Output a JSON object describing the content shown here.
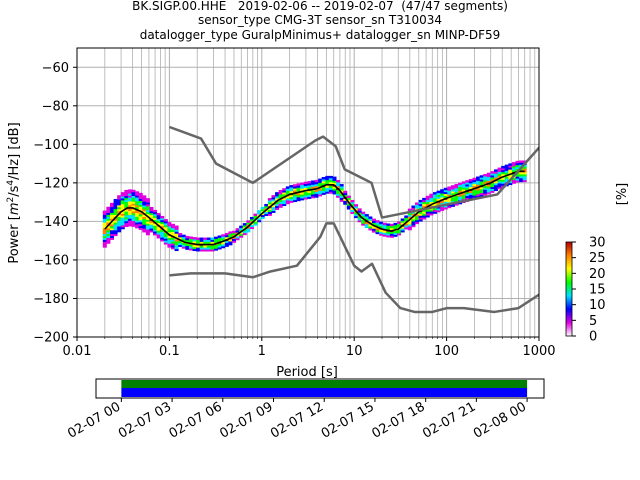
{
  "title_lines": [
    "BK.SIGP.00.HHE   2019-02-06 -- 2019-02-07  (47/47 segments)",
    "sensor_type CMG-3T sensor_sn T310034",
    "datalogger_type GuralpMinimus+ datalogger_sn MINP-DF59"
  ],
  "chart_data": [
    {
      "type": "heatmap",
      "subtype": "probabilistic-power-spectral-density",
      "xlabel": "Period [s]",
      "ylabel": "Power [m²/s⁴/Hz] [dB]",
      "ylabel_parts": {
        "pre": "Power [",
        "m": "m",
        "exp1": "2",
        "mid": "/s",
        "exp2": "4",
        "post": "/Hz] [dB]"
      },
      "xscale": "log",
      "xlim": [
        0.01,
        1000
      ],
      "ylim": [
        -200,
        -50
      ],
      "xticks": [
        0.01,
        0.1,
        1,
        10,
        100,
        1000
      ],
      "xtick_labels": [
        "0.01",
        "0.1",
        "1",
        "10",
        "100",
        "1000"
      ],
      "yticks": [
        -200,
        -180,
        -160,
        -140,
        -120,
        -100,
        -80,
        -60
      ],
      "ytick_labels": [
        "−200",
        "−180",
        "−160",
        "−140",
        "−120",
        "−100",
        "−80",
        "−60"
      ],
      "grid": true,
      "colorbar": {
        "label": "[%]",
        "range": [
          0,
          30
        ],
        "ticks": [
          0,
          5,
          10,
          15,
          20,
          25,
          30
        ],
        "tick_labels": [
          "0",
          "5",
          "10",
          "15",
          "20",
          "25",
          "30"
        ],
        "colors": [
          "#ffffff",
          "#e000e0",
          "#0000ff",
          "#00e0ff",
          "#00ff00",
          "#ffff00",
          "#ff8000",
          "#b00000"
        ]
      },
      "series": [
        {
          "role": "mode",
          "color": "#000000",
          "points": [
            [
              0.02,
              -144
            ],
            [
              0.025,
              -139
            ],
            [
              0.03,
              -135
            ],
            [
              0.035,
              -133
            ],
            [
              0.04,
              -133
            ],
            [
              0.05,
              -135
            ],
            [
              0.06,
              -138
            ],
            [
              0.08,
              -143
            ],
            [
              0.1,
              -147
            ],
            [
              0.15,
              -151
            ],
            [
              0.2,
              -152
            ],
            [
              0.3,
              -152
            ],
            [
              0.4,
              -150
            ],
            [
              0.5,
              -148
            ],
            [
              0.7,
              -143
            ],
            [
              1,
              -136
            ],
            [
              1.5,
              -129
            ],
            [
              2,
              -126
            ],
            [
              3,
              -124
            ],
            [
              4,
              -123
            ],
            [
              5,
              -121
            ],
            [
              6,
              -121
            ],
            [
              7,
              -124
            ],
            [
              9,
              -131
            ],
            [
              12,
              -138
            ],
            [
              16,
              -142
            ],
            [
              20,
              -144
            ],
            [
              25,
              -145
            ],
            [
              30,
              -144
            ],
            [
              40,
              -139
            ],
            [
              50,
              -135
            ],
            [
              70,
              -131
            ],
            [
              100,
              -128
            ],
            [
              150,
              -125
            ],
            [
              200,
              -123
            ],
            [
              300,
              -120
            ],
            [
              400,
              -117
            ],
            [
              600,
              -114
            ],
            [
              700,
              -114
            ]
          ]
        },
        {
          "role": "new-high-noise-model",
          "color": "#666666",
          "points": [
            [
              0.1,
              -91
            ],
            [
              0.22,
              -97
            ],
            [
              0.32,
              -110
            ],
            [
              0.8,
              -120
            ],
            [
              3.8,
              -98
            ],
            [
              4.6,
              -96
            ],
            [
              6.3,
              -101
            ],
            [
              7.9,
              -113
            ],
            [
              15.4,
              -120
            ],
            [
              20,
              -138
            ],
            [
              354,
              -126
            ],
            [
              10000,
              -48
            ]
          ]
        },
        {
          "role": "new-low-noise-model",
          "color": "#666666",
          "points": [
            [
              0.1,
              -168
            ],
            [
              0.17,
              -167
            ],
            [
              0.4,
              -167
            ],
            [
              0.8,
              -169
            ],
            [
              1.24,
              -166
            ],
            [
              2.4,
              -163
            ],
            [
              4.3,
              -148
            ],
            [
              5,
              -141
            ],
            [
              6,
              -141
            ],
            [
              10,
              -163
            ],
            [
              12,
              -166
            ],
            [
              15.6,
              -162
            ],
            [
              21.9,
              -177
            ],
            [
              31.6,
              -185
            ],
            [
              45,
              -187
            ],
            [
              70,
              -187
            ],
            [
              101,
              -185
            ],
            [
              154,
              -185
            ],
            [
              328,
              -187
            ],
            [
              600,
              -185
            ],
            [
              1000,
              -178
            ]
          ]
        }
      ]
    },
    {
      "type": "timeline",
      "tick_labels": [
        "02-07 00",
        "02-07 03",
        "02-07 06",
        "02-07 09",
        "02-07 12",
        "02-07 15",
        "02-07 18",
        "02-07 21",
        "02-08 00"
      ],
      "range_start": "02-06 22:30",
      "range_end": "02-08 01:00",
      "bars": [
        {
          "start": "02-07 00:00",
          "end": "02-08 00:00",
          "color": "#008000"
        },
        {
          "start": "02-07 00:00",
          "end": "02-08 00:00",
          "color": "#0000ff"
        }
      ]
    }
  ]
}
